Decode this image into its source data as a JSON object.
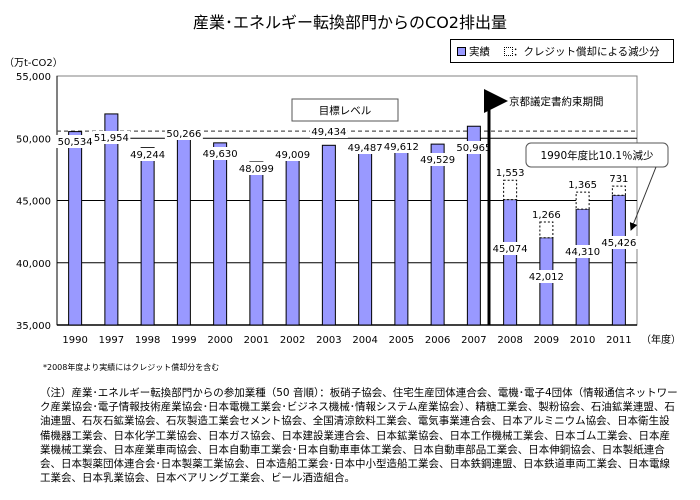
{
  "chart_data": {
    "type": "bar",
    "title": "産業･エネルギー転換部門からのCO2排出量",
    "ylabel": "（万t-CO2）",
    "xlabel_suffix": "（年度）",
    "ylim": [
      35000,
      55000
    ],
    "yticks": [
      "35,000",
      "40,000",
      "45,000",
      "50,000",
      "55,000"
    ],
    "ytick_values": [
      35000,
      40000,
      45000,
      50000,
      55000
    ],
    "grid": true,
    "legend": {
      "placement": "top-right",
      "entries": [
        "実績",
        "：クレジット償却による減少分"
      ]
    },
    "categories": [
      "1990",
      "1997",
      "1998",
      "1999",
      "2000",
      "2001",
      "2002",
      "2003",
      "2004",
      "2005",
      "2006",
      "2007",
      "2008",
      "2009",
      "2010",
      "2011"
    ],
    "series": [
      {
        "name": "実績",
        "color": "#9999ff",
        "values": [
          50534,
          51954,
          49244,
          50266,
          49630,
          48099,
          49009,
          49434,
          49487,
          49612,
          49529,
          50965,
          45074,
          42012,
          44310,
          45426
        ],
        "labels": [
          "50,534",
          "51,954",
          "49,244",
          "50,266",
          "49,630",
          "48,099",
          "49,009",
          "49,434",
          "49,487",
          "49,612",
          "49,529",
          "50,965",
          "45,074",
          "42,012",
          "44,310",
          "45,426"
        ]
      },
      {
        "name": "クレジット償却による減少分",
        "values": [
          null,
          null,
          null,
          null,
          null,
          null,
          null,
          null,
          null,
          null,
          null,
          null,
          1553,
          1266,
          1365,
          731
        ],
        "labels": [
          "",
          "",
          "",
          "",
          "",
          "",
          "",
          "",
          "",
          "",
          "",
          "",
          "1,553",
          "1,266",
          "1,365",
          "731"
        ]
      }
    ],
    "target_level": 50534,
    "annotations": {
      "target_label": "目標レベル",
      "kyoto_label": "京都議定書約束期間",
      "kyoto_start_category": "2008",
      "reduction_callout": "1990年度比10.1％減少"
    }
  },
  "notes": {
    "credit_note": "*2008年度より実績にはクレジット償却分を含む",
    "member_note": "（注）産業･エネルギー転換部門からの参加業種（50 音順）：板硝子協会、住宅生産団体連合会、電機･電子4団体（情報通信ネットワーク産業協会･電子情報技術産業協会･日本電機工業会･ビジネス機械･情報システム産業協会）、精糖工業会、製粉協会、石油鉱業連盟、石油連盟、石灰石鉱業協会、石灰製造工業会セメント協会、全国清涼飲料工業会、電気事業連合会、日本アルミニウム協会、日本衛生設備機器工業会、日本化学工業協会、日本ガス協会、日本建設業連合会、日本鉱業協会、日本工作機械工業会、日本ゴム工業会、日本産業機械工業会、日本産業車両協会、日本自動車工業会･日本自動車車体工業会、日本自動車部品工業会、日本伸銅協会、日本製紙連合会、日本製薬団体連合会･日本製薬工業協会、日本造船工業会･日本中小型造船工業会、日本鉄鋼連盟、日本鉄道車両工業会、日本電線工業会、日本乳業協会、日本ベアリング工業会、ビール酒造組合。"
  }
}
